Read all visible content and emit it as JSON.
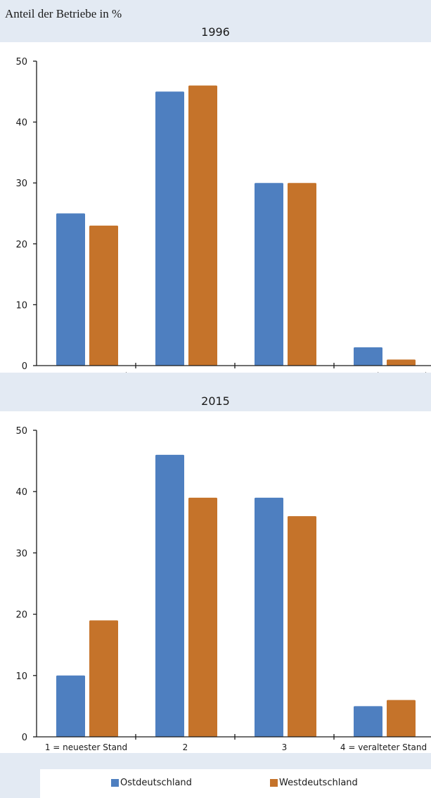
{
  "header": {
    "ylabel": "Anteil der Betriebe in %"
  },
  "colors": {
    "ost": "#4e7fc0",
    "west": "#c5732a"
  },
  "legend": {
    "ost": "Ostdeutschland",
    "west": "Westdeutschland"
  },
  "chart_data": [
    {
      "type": "bar",
      "title": "1996",
      "categories": [
        "1 = neuester Stand",
        "2",
        "3",
        "4 = veralteter Stand"
      ],
      "ylim": [
        0,
        50
      ],
      "yticks": [
        0,
        10,
        20,
        30,
        40,
        50
      ],
      "series": [
        {
          "name": "Ostdeutschland",
          "values": [
            25,
            45,
            30,
            3
          ]
        },
        {
          "name": "Westdeutschland",
          "values": [
            23,
            46,
            30,
            1
          ]
        }
      ],
      "legend_position": "bottom"
    },
    {
      "type": "bar",
      "title": "2015",
      "categories": [
        "1 = neuester Stand",
        "2",
        "3",
        "4 = veralteter Stand"
      ],
      "ylim": [
        0,
        50
      ],
      "yticks": [
        0,
        10,
        20,
        30,
        40,
        50
      ],
      "series": [
        {
          "name": "Ostdeutschland",
          "values": [
            10,
            46,
            39,
            5
          ]
        },
        {
          "name": "Westdeutschland",
          "values": [
            19,
            39,
            36,
            6
          ]
        }
      ],
      "legend_position": "bottom"
    }
  ]
}
